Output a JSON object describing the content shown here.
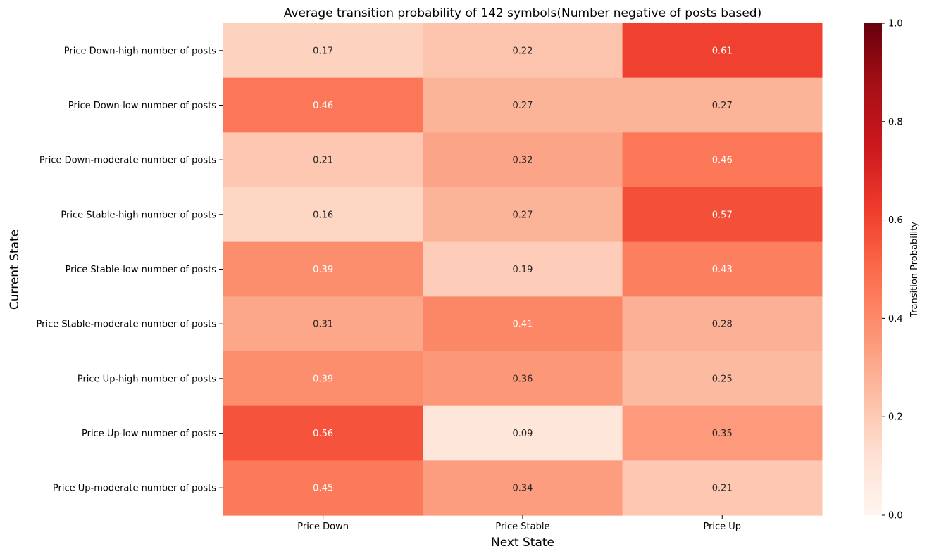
{
  "chart_data": {
    "type": "heatmap",
    "title": "Average transition probability of 142 symbols(Number negative of posts based)",
    "xlabel": "Next State",
    "ylabel": "Current State",
    "columns": [
      "Price Down",
      "Price Stable",
      "Price Up"
    ],
    "rows": [
      "Price Down-high number of posts",
      "Price Down-low number of posts",
      "Price Down-moderate number of posts",
      "Price Stable-high number of posts",
      "Price Stable-low number of posts",
      "Price Stable-moderate number of posts",
      "Price Up-high number of posts",
      "Price Up-low number of posts",
      "Price Up-moderate number of posts"
    ],
    "values": [
      [
        0.17,
        0.22,
        0.61
      ],
      [
        0.46,
        0.27,
        0.27
      ],
      [
        0.21,
        0.32,
        0.46
      ],
      [
        0.16,
        0.27,
        0.57
      ],
      [
        0.39,
        0.19,
        0.43
      ],
      [
        0.31,
        0.41,
        0.28
      ],
      [
        0.39,
        0.36,
        0.25
      ],
      [
        0.56,
        0.09,
        0.35
      ],
      [
        0.45,
        0.34,
        0.21
      ]
    ],
    "colorbar": {
      "label": "Transition Probability",
      "range": [
        0,
        1
      ],
      "ticks": [
        "0.0",
        "0.2",
        "0.4",
        "0.6",
        "0.8",
        "1.0"
      ],
      "colormap": "Reds"
    }
  }
}
